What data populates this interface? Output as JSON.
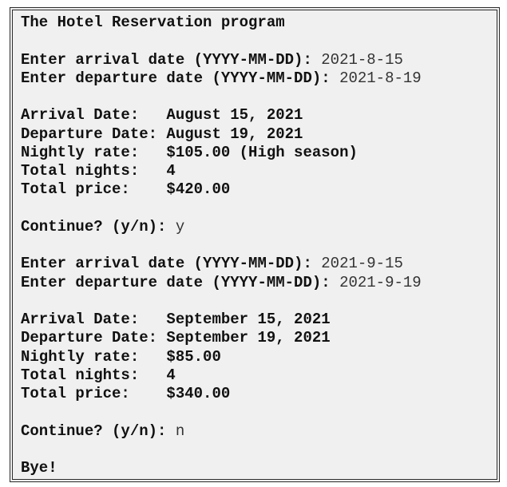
{
  "console": {
    "sections": [
      [
        {
          "text": "The Hotel Reservation program"
        }
      ],
      [
        {
          "text": "Enter arrival date (YYYY-MM-DD): ",
          "input": "2021-8-15"
        },
        {
          "text": "Enter departure date (YYYY-MM-DD): ",
          "input": "2021-8-19"
        }
      ],
      [
        {
          "text": "Arrival Date:   August 15, 2021"
        },
        {
          "text": "Departure Date: August 19, 2021"
        },
        {
          "text": "Nightly rate:   $105.00 (High season)"
        },
        {
          "text": "Total nights:   4"
        },
        {
          "text": "Total price:    $420.00"
        }
      ],
      [
        {
          "text": "Continue? (y/n): ",
          "input": "y"
        }
      ],
      [
        {
          "text": "Enter arrival date (YYYY-MM-DD): ",
          "input": "2021-9-15"
        },
        {
          "text": "Enter departure date (YYYY-MM-DD): ",
          "input": "2021-9-19"
        }
      ],
      [
        {
          "text": "Arrival Date:   September 15, 2021"
        },
        {
          "text": "Departure Date: September 19, 2021"
        },
        {
          "text": "Nightly rate:   $85.00"
        },
        {
          "text": "Total nights:   4"
        },
        {
          "text": "Total price:    $340.00"
        }
      ],
      [
        {
          "text": "Continue? (y/n): ",
          "input": "n"
        }
      ],
      [
        {
          "text": "Bye!"
        }
      ]
    ]
  }
}
